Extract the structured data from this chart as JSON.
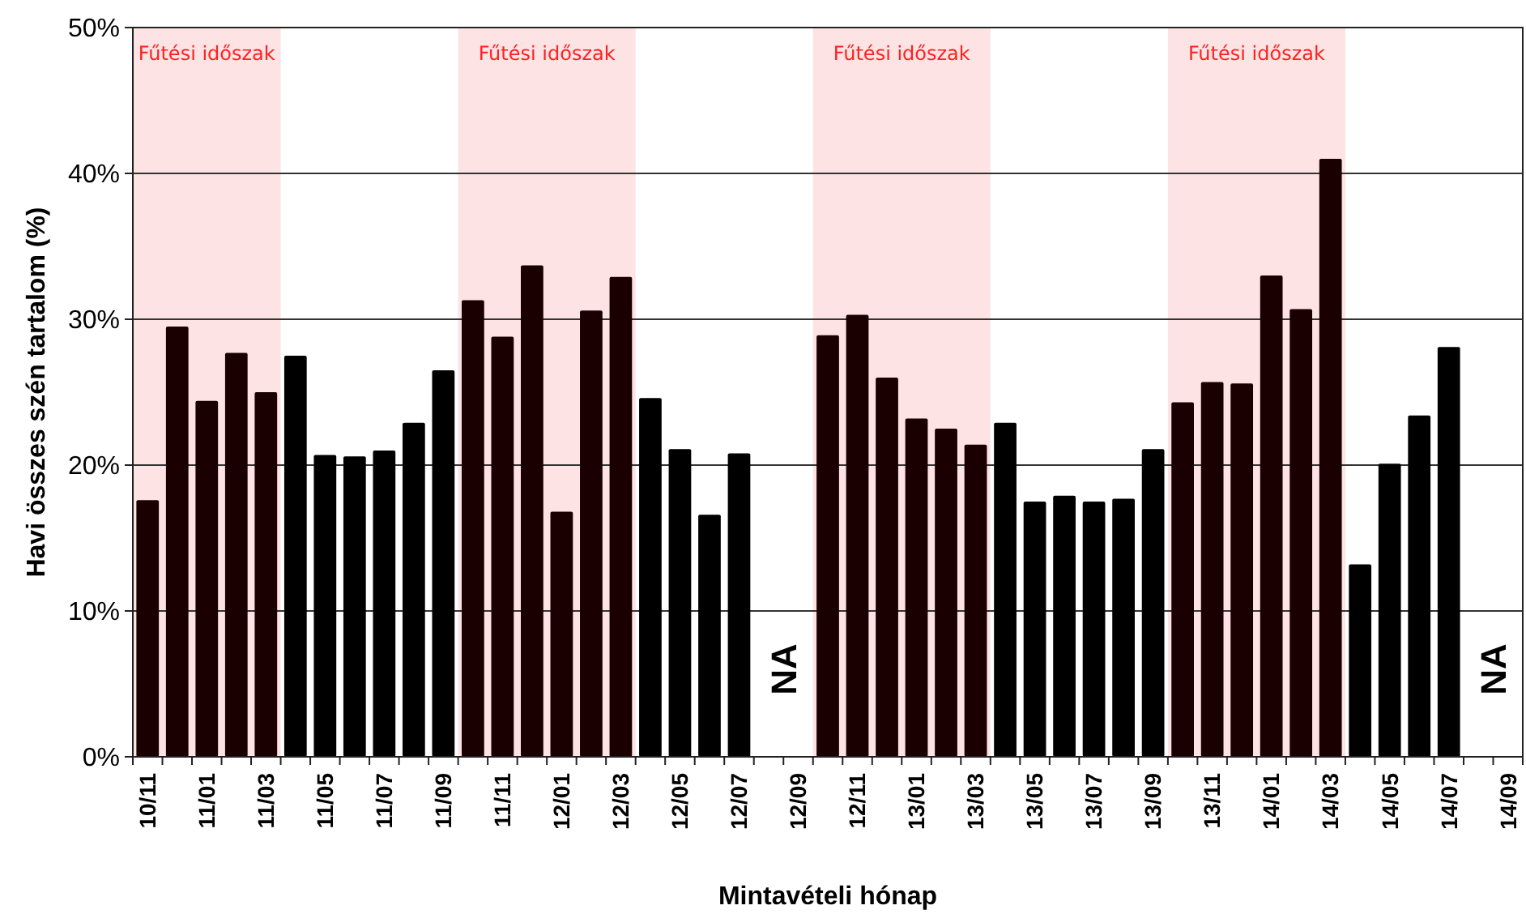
{
  "chart_data": {
    "type": "bar",
    "xlabel": "Mintavételi hónap",
    "ylabel": "Havi összes szén tartalom (%)",
    "categories": [
      "10/11",
      null,
      "11/01",
      null,
      "11/03",
      null,
      "11/05",
      null,
      "11/07",
      null,
      "11/09",
      null,
      "11/11",
      null,
      "12/01",
      null,
      "12/03",
      null,
      "12/05",
      null,
      "12/07",
      null,
      "12/09",
      null,
      "12/11",
      null,
      "13/01",
      null,
      "13/03",
      null,
      "13/05",
      null,
      "13/07",
      null,
      "13/09",
      null,
      "13/11",
      null,
      "14/01",
      null,
      "14/03",
      null,
      "14/05",
      null,
      "14/07",
      null,
      "14/09"
    ],
    "values": [
      17.6,
      29.5,
      24.4,
      27.7,
      25.0,
      27.5,
      20.7,
      20.6,
      21.0,
      22.9,
      26.5,
      31.3,
      28.8,
      33.7,
      16.8,
      30.6,
      32.9,
      24.6,
      21.1,
      16.6,
      20.8,
      null,
      null,
      28.9,
      30.3,
      26.0,
      23.2,
      22.5,
      21.4,
      22.9,
      17.5,
      17.9,
      17.5,
      17.7,
      21.1,
      24.3,
      25.7,
      25.6,
      33.0,
      30.7,
      41.0,
      13.2,
      20.1,
      23.4,
      28.1,
      null,
      null
    ],
    "colors": [
      "#1a0000",
      "#1a0000",
      "#1a0000",
      "#1a0000",
      "#1a0000",
      "#000000",
      "#000000",
      "#000000",
      "#000000",
      "#000000",
      "#000000",
      "#1a0000",
      "#1a0000",
      "#1a0000",
      "#1a0000",
      "#1a0000",
      "#1a0000",
      "#000000",
      "#000000",
      "#000000",
      "#000000",
      null,
      null,
      "#1a0000",
      "#1a0000",
      "#1a0000",
      "#1a0000",
      "#1a0000",
      "#1a0000",
      "#000000",
      "#000000",
      "#000000",
      "#000000",
      "#000000",
      "#000000",
      "#1a0000",
      "#1a0000",
      "#1a0000",
      "#1a0000",
      "#1a0000",
      "#1a0000",
      "#000000",
      "#000000",
      "#000000",
      "#000000",
      null,
      null
    ],
    "ylim": [
      0,
      50
    ],
    "yticks": [
      {
        "value": 0,
        "label": "0%"
      },
      {
        "value": 10,
        "label": "10%"
      },
      {
        "value": 20,
        "label": "20%"
      },
      {
        "value": 30,
        "label": "30%"
      },
      {
        "value": 40,
        "label": "40%"
      },
      {
        "value": 50,
        "label": "50%"
      }
    ],
    "grid": "y",
    "annotations": [
      "Fűtési időszak",
      "Fűtési időszak",
      "Fűtési időszak",
      "Fűtési időszak",
      "NA",
      "NA"
    ]
  }
}
